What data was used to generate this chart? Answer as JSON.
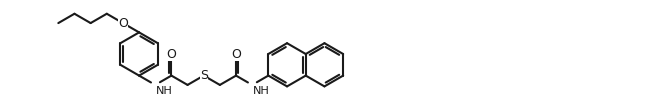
{
  "bg_color": "#ffffff",
  "line_color": "#1a1a1a",
  "line_width": 1.5,
  "font_size": 8.5,
  "fig_width": 6.66,
  "fig_height": 1.08,
  "dpi": 100,
  "xlim": [
    0,
    13.5
  ],
  "ylim": [
    0,
    2.2
  ]
}
